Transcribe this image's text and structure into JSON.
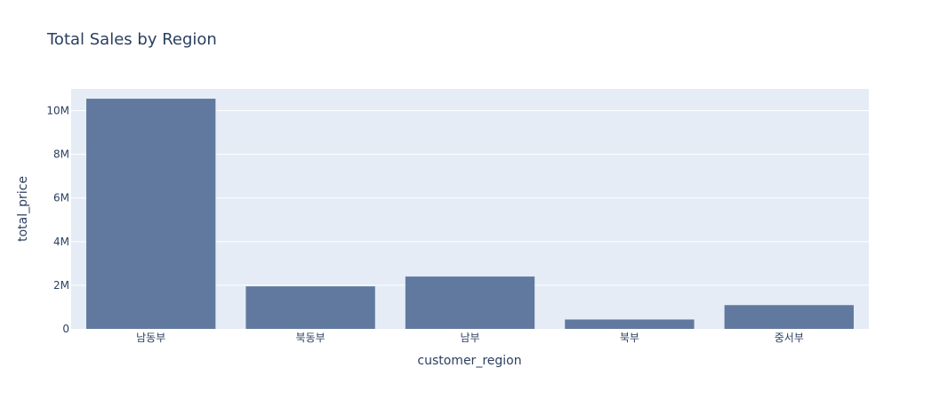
{
  "chart_data": {
    "type": "bar",
    "title": "Total Sales by Region",
    "xlabel": "customer_region",
    "ylabel": "total_price",
    "categories": [
      "남동부",
      "북동부",
      "남부",
      "북부",
      "중서부"
    ],
    "values": [
      10550000,
      1950000,
      2400000,
      430000,
      1090000
    ],
    "ylim": [
      0,
      11000000
    ],
    "yticks": [
      0,
      2000000,
      4000000,
      6000000,
      8000000,
      10000000
    ],
    "ytick_labels": [
      "0",
      "2M",
      "4M",
      "6M",
      "8M",
      "10M"
    ],
    "grid": true,
    "colors": {
      "bar": "#61799e",
      "plot_bg": "#e5ecf6",
      "text": "#2a3f5f"
    }
  }
}
